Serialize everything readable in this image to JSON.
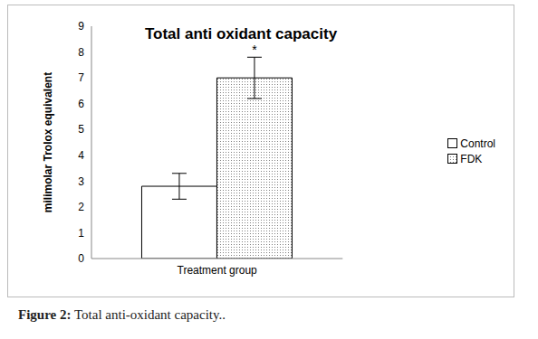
{
  "chart_data": {
    "type": "bar",
    "title": "Total anti oxidant capacity",
    "y_label": "milimolar Trolox equivalent",
    "categories": [
      "Treatment group"
    ],
    "series": [
      {
        "name": "Control",
        "color": "#ffffff",
        "values": [
          2.8
        ],
        "errors": [
          0.5
        ]
      },
      {
        "name": "FDK",
        "color": "#808080",
        "values": [
          7.0
        ],
        "errors": [
          0.8
        ],
        "annotation": "*"
      }
    ],
    "ylim": [
      0,
      9
    ],
    "yticks": [
      0,
      1,
      2,
      3,
      4,
      5,
      6,
      7,
      8,
      9
    ],
    "grid": false,
    "legend": "right",
    "caption_label": "Figure 2:",
    "caption": "Total anti-oxidant capacity.."
  }
}
